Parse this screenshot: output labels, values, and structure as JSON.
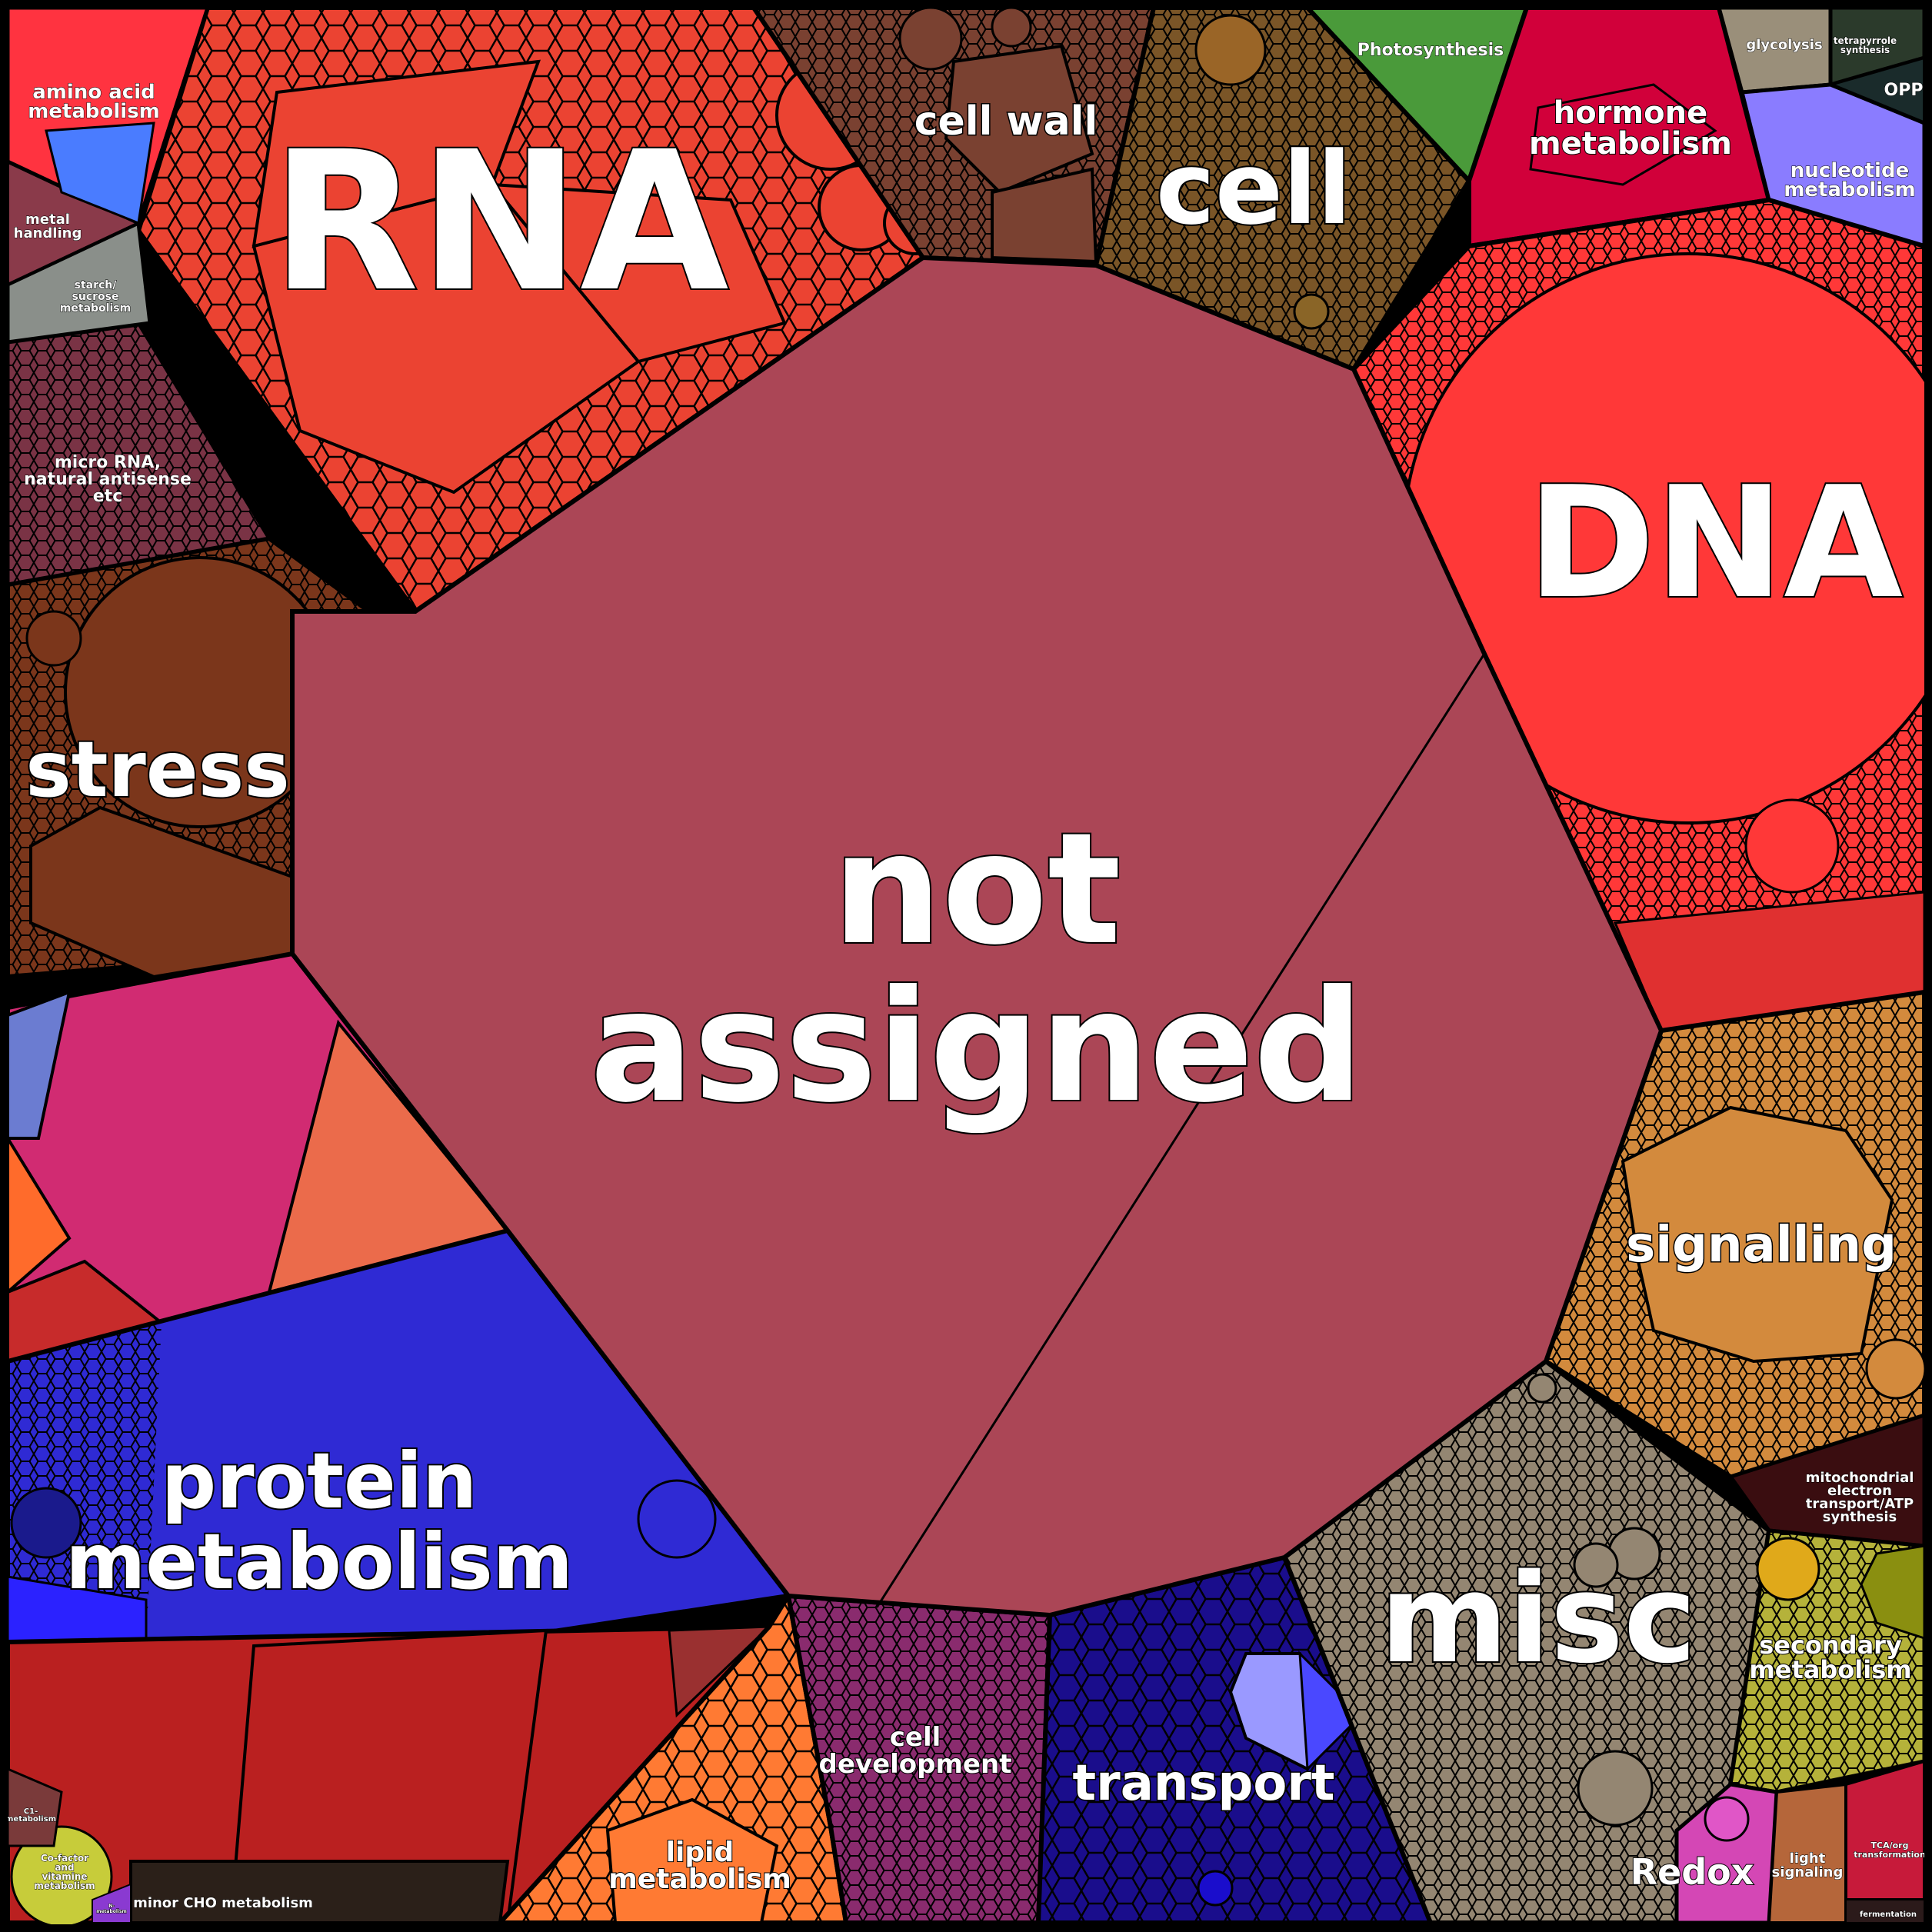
{
  "chart_data": {
    "type": "voronoi-treemap",
    "categories": [
      {
        "label": "not assigned",
        "color": "#AB4656"
      },
      {
        "label": "RNA",
        "color": "#EB4332"
      },
      {
        "label": "DNA",
        "color": "#FF3838"
      },
      {
        "label": "cell",
        "color": "#7A5527"
      },
      {
        "label": "cell wall",
        "color": "#7A4131"
      },
      {
        "label": "stress",
        "color": "#7B361B"
      },
      {
        "label": "protein metabolism",
        "color": "#2F2AD4"
      },
      {
        "label": "misc",
        "color": "#948672"
      },
      {
        "label": "signalling",
        "color": "#D38A3D"
      },
      {
        "label": "transport",
        "color": "#1A0D8C"
      },
      {
        "label": "cell development",
        "color": "#8A2B6E"
      },
      {
        "label": "lipid metabolism",
        "color": "#FF7A33"
      },
      {
        "label": "secondary metabolism",
        "color": "#B5B23A"
      },
      {
        "label": "Redox",
        "color": "#D447B5"
      },
      {
        "label": "hormone metabolism",
        "color": "#D1003A"
      },
      {
        "label": "nucleotide metabolism",
        "color": "#8A7CFF"
      },
      {
        "label": "Photosynthesis",
        "color": "#4A9A3A"
      },
      {
        "label": "glycolysis",
        "color": "#9A8F7A"
      },
      {
        "label": "tetrapyrrole synthesis",
        "color": "#2B3A2B"
      },
      {
        "label": "OPP",
        "color": "#1A2B2B"
      },
      {
        "label": "amino acid metabolism",
        "color": "#FF3340"
      },
      {
        "label": "metal handling",
        "color": "#8A3A4A"
      },
      {
        "label": "starch/ sucrose metabolism",
        "color": "#8A8F8A"
      },
      {
        "label": "micro RNA, natural antisense etc",
        "color": "#7A3345"
      },
      {
        "label": "mitochondrial electron transport/ATP synthesis",
        "color": "#3A0D10"
      },
      {
        "label": "light signaling",
        "color": "#B5663A"
      },
      {
        "label": "TCA/org transformation",
        "color": "#C71A3A"
      },
      {
        "label": "fermentation",
        "color": "#2B1A1A"
      },
      {
        "label": "minor CHO metabolism",
        "color": "#2B2019"
      },
      {
        "label": "Co-factor and vitamine metabolism",
        "color": "#C7CC3A"
      },
      {
        "label": "C1-metabolism",
        "color": "#7A3A3A"
      },
      {
        "label": "N-metabolism",
        "color": "#8A3AD1"
      }
    ]
  },
  "labels": {
    "not_assigned_1": "not",
    "not_assigned_2": "assigned",
    "rna": "RNA",
    "dna": "DNA",
    "cell": "cell",
    "cell_wall": "cell wall",
    "stress": "stress",
    "protein_1": "protein",
    "protein_2": "metabolism",
    "misc": "misc",
    "signalling": "signalling",
    "transport": "transport",
    "cell_dev_1": "cell",
    "cell_dev_2": "development",
    "lipid_1": "lipid",
    "lipid_2": "metabolism",
    "secondary_1": "secondary",
    "secondary_2": "metabolism",
    "redox": "Redox",
    "hormone_1": "hormone",
    "hormone_2": "metabolism",
    "nucleotide_1": "nucleotide",
    "nucleotide_2": "metabolism",
    "photosynthesis": "Photosynthesis",
    "glycolysis": "glycolysis",
    "tetrapyrrole_1": "tetrapyrrole",
    "tetrapyrrole_2": "synthesis",
    "opp": "OPP",
    "amino_1": "amino acid",
    "amino_2": "metabolism",
    "metal_1": "metal",
    "metal_2": "handling",
    "starch_1": "starch/",
    "starch_2": "sucrose",
    "starch_3": "metabolism",
    "mirna_1": "micro RNA,",
    "mirna_2": "natural antisense",
    "mirna_3": "etc",
    "mito_1": "mitochondrial",
    "mito_2": "electron",
    "mito_3": "transport/ATP",
    "mito_4": "synthesis",
    "light_1": "light",
    "light_2": "signaling",
    "tca_1": "TCA/org",
    "tca_2": "transformation",
    "fermentation": "fermentation",
    "minor_cho": "minor CHO metabolism",
    "cofactor_1": "Co-factor",
    "cofactor_2": "and",
    "cofactor_3": "vitamine",
    "cofactor_4": "metabolism",
    "c1_1": "C1-",
    "c1_2": "metabolism",
    "n_1": "N-",
    "n_2": "metabolism"
  }
}
